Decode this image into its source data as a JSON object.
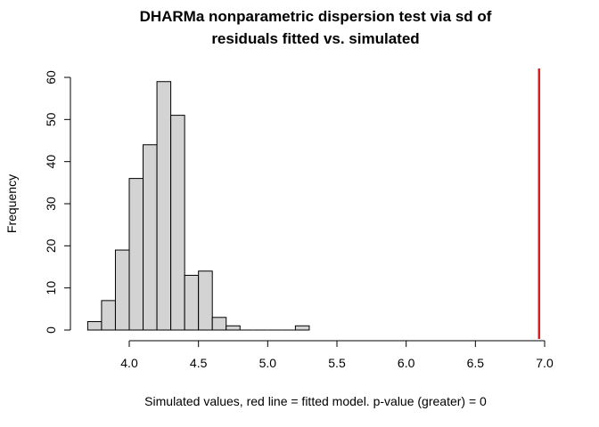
{
  "chart_data": {
    "type": "bar",
    "title_line1": "DHARMa nonparametric dispersion test via sd of",
    "title_line2": "residuals fitted vs. simulated",
    "xlabel": "Simulated values, red line = fitted model. p-value (greater) = 0",
    "ylabel": "Frequency",
    "xlim": [
      3.65,
      7.0
    ],
    "ylim": [
      0,
      60
    ],
    "x_ticks": [
      "4.0",
      "4.5",
      "5.0",
      "5.5",
      "6.0",
      "6.5",
      "7.0"
    ],
    "y_ticks": [
      "0",
      "10",
      "20",
      "30",
      "40",
      "50",
      "60"
    ],
    "bin_width": 0.1,
    "bins": [
      {
        "start": 3.7,
        "end": 3.8,
        "count": 2
      },
      {
        "start": 3.8,
        "end": 3.9,
        "count": 7
      },
      {
        "start": 3.9,
        "end": 4.0,
        "count": 19
      },
      {
        "start": 4.0,
        "end": 4.1,
        "count": 36
      },
      {
        "start": 4.1,
        "end": 4.2,
        "count": 44
      },
      {
        "start": 4.2,
        "end": 4.3,
        "count": 59
      },
      {
        "start": 4.3,
        "end": 4.4,
        "count": 51
      },
      {
        "start": 4.4,
        "end": 4.5,
        "count": 13
      },
      {
        "start": 4.5,
        "end": 4.6,
        "count": 14
      },
      {
        "start": 4.6,
        "end": 4.7,
        "count": 3
      },
      {
        "start": 4.7,
        "end": 4.8,
        "count": 1
      },
      {
        "start": 4.8,
        "end": 4.9,
        "count": 0
      },
      {
        "start": 4.9,
        "end": 5.0,
        "count": 0
      },
      {
        "start": 5.0,
        "end": 5.1,
        "count": 0
      },
      {
        "start": 5.1,
        "end": 5.2,
        "count": 0
      },
      {
        "start": 5.2,
        "end": 5.3,
        "count": 1
      }
    ],
    "observed_value": 6.96,
    "bar_fill": "#d3d3d3",
    "bar_stroke": "#000000",
    "observed_line_color": "#e31a1c",
    "grid": false,
    "legend": "none"
  }
}
